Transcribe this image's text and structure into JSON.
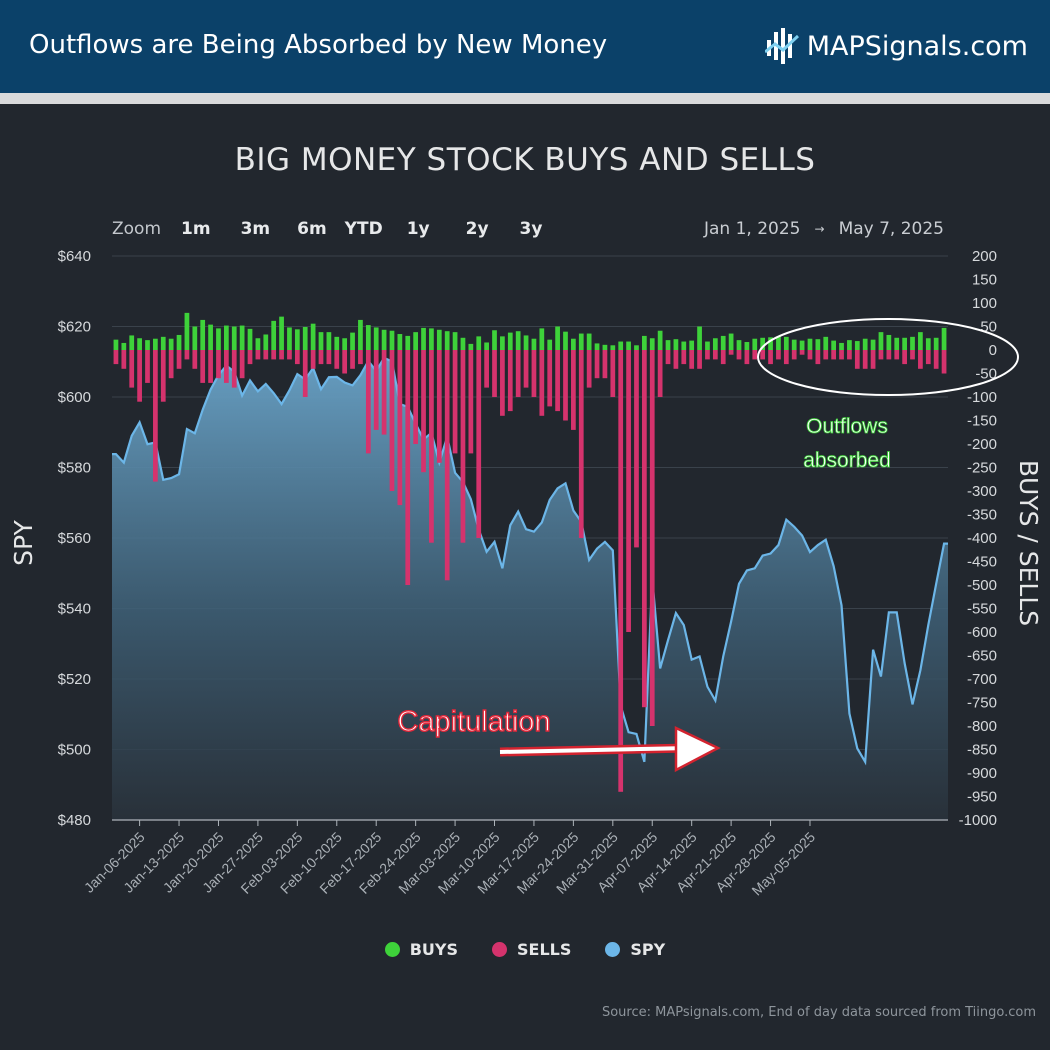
{
  "header": {
    "title": "Outflows are Being Absorbed by New Money",
    "brand": "MAPSignals.com",
    "logo_icon": "map-signals-logo-icon"
  },
  "colors": {
    "header_bg": "#0b4169",
    "buys": "#3ed23a",
    "sells": "#d5336d",
    "spy": "#6cb6e8",
    "background": "#22272e"
  },
  "chart_data": {
    "type": "bar",
    "title": "BIG MONEY STOCK BUYS AND SELLS",
    "zoom": {
      "label": "Zoom",
      "options": [
        "1m",
        "3m",
        "6m",
        "YTD",
        "1y",
        "2y",
        "3y"
      ]
    },
    "range": {
      "from": "Jan 1, 2025",
      "arrow": "→",
      "to": "May 7, 2025"
    },
    "left_axis": {
      "label": "SPY",
      "min": 480,
      "max": 640,
      "ticks": [
        "$640",
        "$620",
        "$600",
        "$580",
        "$560",
        "$540",
        "$520",
        "$500",
        "$480"
      ]
    },
    "right_axis": {
      "label": "BUYS / SELLS",
      "min": -1000,
      "max": 200,
      "ticks": [
        "200",
        "150",
        "100",
        "50",
        "0",
        "-50",
        "-100",
        "-150",
        "-200",
        "-250",
        "-300",
        "-350",
        "-400",
        "-450",
        "-500",
        "-550",
        "-600",
        "-650",
        "-700",
        "-750",
        "-800",
        "-850",
        "-900",
        "-950",
        "-1000"
      ]
    },
    "x_tick_labels": [
      "Jan-06-2025",
      "Jan-13-2025",
      "Jan-20-2025",
      "Jan-27-2025",
      "Feb-03-2025",
      "Feb-10-2025",
      "Feb-17-2025",
      "Feb-24-2025",
      "Mar-03-2025",
      "Mar-10-2025",
      "Mar-17-2025",
      "Mar-24-2025",
      "Mar-31-2025",
      "Apr-07-2025",
      "Apr-14-2025",
      "Apr-21-2025",
      "Apr-28-2025",
      "May-05-2025"
    ],
    "series": [
      {
        "name": "BUYS",
        "values": [
          22,
          15,
          31,
          25,
          21,
          24,
          28,
          24,
          32,
          79,
          50,
          64,
          54,
          46,
          52,
          50,
          52,
          45,
          25,
          33,
          62,
          71,
          48,
          44,
          49,
          56,
          38,
          38,
          28,
          25,
          37,
          64,
          53,
          48,
          43,
          41,
          34,
          30,
          38,
          47,
          46,
          43,
          40,
          38,
          26,
          13,
          29,
          16,
          42,
          29,
          37,
          40,
          31,
          24,
          46,
          22,
          50,
          39,
          24,
          35,
          35,
          14,
          11,
          10,
          18,
          18,
          10,
          30,
          25,
          41,
          21,
          23,
          18,
          20,
          50,
          18,
          25,
          30,
          35,
          21,
          17,
          24,
          26,
          27,
          29,
          28,
          22,
          20,
          24,
          23,
          28,
          20,
          15,
          21,
          19,
          24,
          22,
          38,
          32,
          26,
          26,
          28,
          38,
          25,
          26,
          47
        ]
      },
      {
        "name": "SELLS",
        "values": [
          -30,
          -40,
          -80,
          -110,
          -70,
          -280,
          -110,
          -60,
          -40,
          -20,
          -40,
          -70,
          -70,
          -60,
          -70,
          -80,
          -60,
          -30,
          -20,
          -20,
          -20,
          -20,
          -20,
          -30,
          -100,
          -40,
          -30,
          -30,
          -40,
          -50,
          -40,
          -30,
          -220,
          -170,
          -180,
          -300,
          -330,
          -500,
          -200,
          -260,
          -410,
          -240,
          -490,
          -220,
          -410,
          -220,
          -400,
          -80,
          -100,
          -140,
          -130,
          -100,
          -80,
          -100,
          -140,
          -120,
          -130,
          -150,
          -170,
          -400,
          -80,
          -60,
          -60,
          -100,
          -940,
          -600,
          -420,
          -760,
          -800,
          -100,
          -30,
          -40,
          -30,
          -40,
          -40,
          -20,
          -20,
          -30,
          -10,
          -20,
          -30,
          -20,
          -20,
          -30,
          -20,
          -30,
          -20,
          -10,
          -20,
          -30,
          -20,
          -20,
          -20,
          -20,
          -40,
          -40,
          -40,
          -20,
          -20,
          -20,
          -30,
          -20,
          -40,
          -30,
          -40,
          -50
        ]
      },
      {
        "name": "SPY",
        "values": [
          583.8,
          581.4,
          589.0,
          592.8,
          586.6,
          587.1,
          576.5,
          577.0,
          578.1,
          590.9,
          589.7,
          596.4,
          602.1,
          606.2,
          608.9,
          607.2,
          600.4,
          604.7,
          601.6,
          603.7,
          601.1,
          598.0,
          601.9,
          606.5,
          605.0,
          608.2,
          602.2,
          605.6,
          605.7,
          604.1,
          603.3,
          606.2,
          610.2,
          607.4,
          611.1,
          610.1,
          598.0,
          597.2,
          592.4,
          588.0,
          589.8,
          581.4,
          588.7,
          578.5,
          575.9,
          571.0,
          562.4,
          556.1,
          558.9,
          551.4,
          563.6,
          567.5,
          562.5,
          561.8,
          564.4,
          570.8,
          574.1,
          575.5,
          567.8,
          564.6,
          553.8,
          557.0,
          558.9,
          556.5,
          512.4,
          504.9,
          504.4,
          496.5,
          548.6,
          523.0,
          531.0,
          538.7,
          535.3,
          525.5,
          526.4,
          517.8,
          513.9,
          526.4,
          536.3,
          547.0,
          550.8,
          551.4,
          555.0,
          555.6,
          558.0,
          565.2,
          563.2,
          560.7,
          556.0,
          558.0,
          559.5,
          552.0,
          540.9,
          510.2,
          500.3,
          496.5,
          528.3,
          520.7,
          538.9,
          538.9,
          524.5,
          512.8,
          522.5,
          535.3,
          547.0,
          558.4
        ]
      }
    ],
    "legend": [
      "BUYS",
      "SELLS",
      "SPY"
    ],
    "annotations": {
      "outflows": [
        "Outflows",
        "absorbed"
      ],
      "capitulation": "Capitulation"
    },
    "source": "Source: MAPsignals.com, End of day data sourced from Tiingo.com"
  }
}
